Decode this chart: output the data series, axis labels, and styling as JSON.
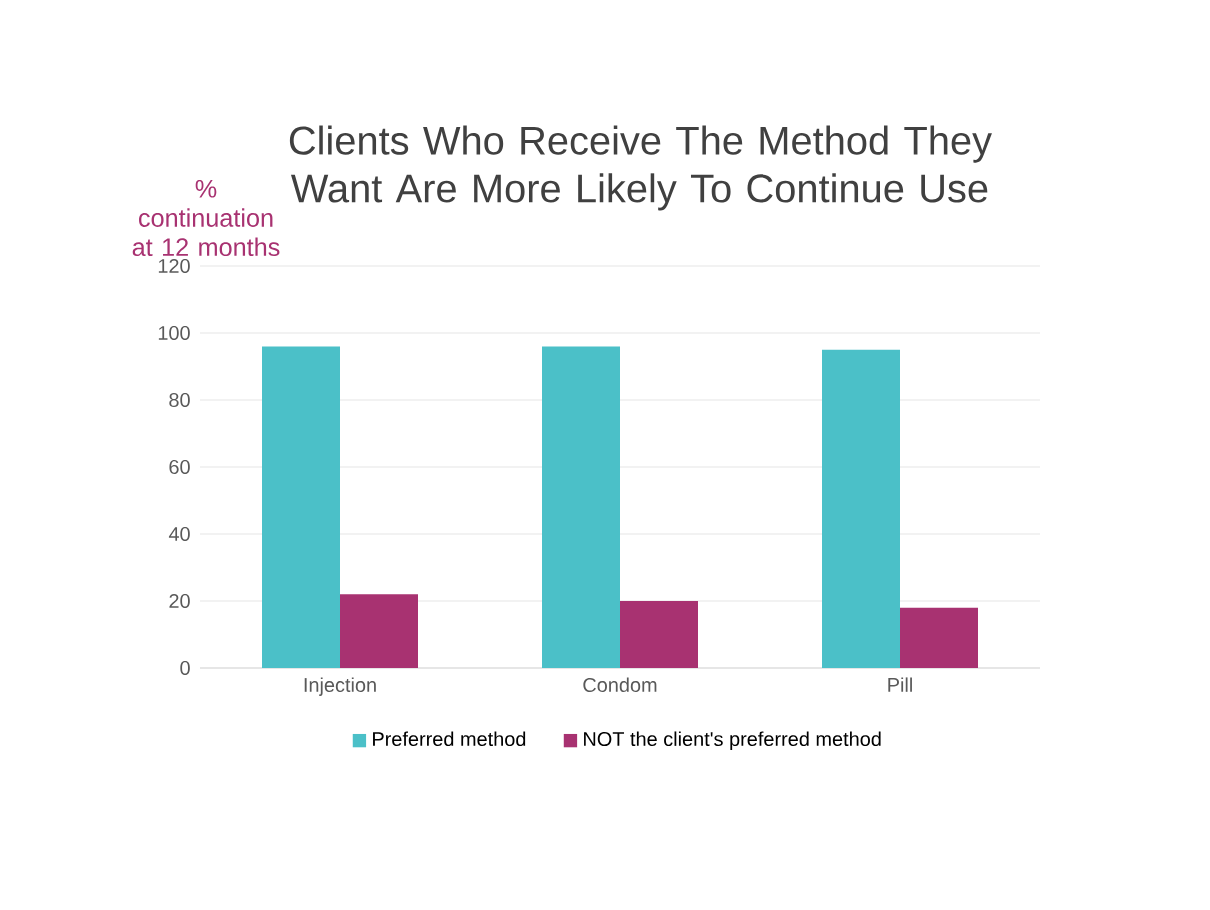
{
  "chart_data": {
    "type": "bar",
    "title": "Clients Who Receive The Method They Want Are More Likely To Continue Use",
    "ylabel": "% continuation at 12 months",
    "categories": [
      "Injection",
      "Condom",
      "Pill"
    ],
    "series": [
      {
        "name": "Preferred method",
        "color": "#4bc0c8",
        "values": [
          96,
          96,
          95
        ]
      },
      {
        "name": "NOT the client's preferred method",
        "color": "#a83271",
        "values": [
          22,
          20,
          18
        ]
      }
    ],
    "ylim": [
      0,
      120
    ],
    "yticks": [
      0,
      20,
      40,
      60,
      80,
      100,
      120
    ],
    "grid": "y",
    "legend": "bottom"
  }
}
